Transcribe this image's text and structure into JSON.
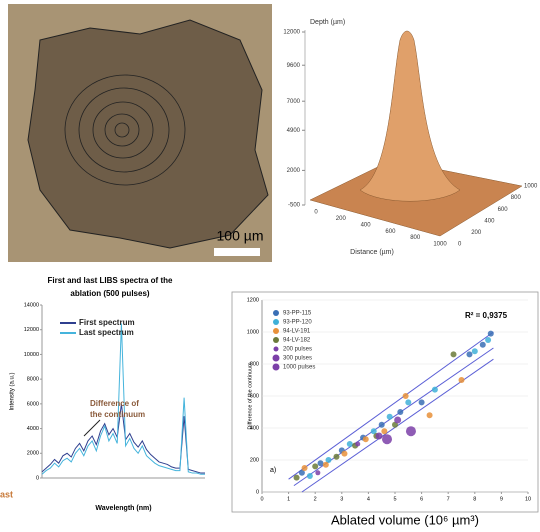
{
  "image_panel": {
    "scale_label": "100 µm"
  },
  "cropped_label": "ast",
  "chart_data": [
    {
      "type": "surface",
      "z_label": "Depth (µm)",
      "x_label": "Distance (µm)",
      "color": "#d9925a",
      "zlim": [
        -500,
        12000
      ],
      "zticks": [
        12000,
        9600,
        7000,
        4900,
        2000,
        -500
      ],
      "xlim": [
        0,
        1000
      ],
      "xticks": [
        0,
        200,
        400,
        600,
        800,
        1000
      ],
      "ylim": [
        0,
        1000
      ],
      "yticks": [
        0,
        200,
        400,
        600,
        800,
        1000
      ]
    },
    {
      "type": "line",
      "title": [
        "First and last LIBS spectra of the",
        "ablation (500 pulses)"
      ],
      "x_label": "Wavelength (nm)",
      "y_label": "Intensity (a.u.)",
      "annotation": [
        "Difference of",
        "the continuum"
      ],
      "x": [
        200,
        217,
        234,
        251,
        268,
        285,
        302,
        319,
        336,
        353,
        370,
        387,
        404,
        421,
        438,
        455,
        472,
        489,
        506,
        523,
        540,
        557,
        574,
        591,
        608,
        625,
        642,
        659,
        676,
        693,
        710,
        727,
        744,
        761,
        778,
        795,
        812,
        829,
        846,
        863
      ],
      "xlim": [
        200,
        863
      ],
      "ylim": [
        0,
        14000
      ],
      "yticks": [
        0,
        2000,
        4000,
        6000,
        8000,
        10000,
        12000,
        14000
      ],
      "series": [
        {
          "name": "First spectrum",
          "color": "#2f3f8f",
          "values": [
            500,
            800,
            1100,
            1500,
            1200,
            1800,
            2000,
            1700,
            2400,
            2800,
            2200,
            3000,
            3400,
            2700,
            3800,
            4400,
            3500,
            4000,
            3300,
            6000,
            3100,
            3600,
            2900,
            2500,
            3000,
            2300,
            1900,
            1600,
            1300,
            1200,
            1100,
            900,
            800,
            800,
            5000,
            700,
            600,
            500,
            400,
            400
          ]
        },
        {
          "name": "Last spectrum",
          "color": "#45b4dc",
          "values": [
            300,
            600,
            800,
            1200,
            900,
            1400,
            1600,
            1300,
            2000,
            2400,
            1800,
            2600,
            3000,
            2200,
            3400,
            4200,
            3000,
            3600,
            2800,
            12500,
            2600,
            3200,
            2400,
            2000,
            2600,
            1800,
            1500,
            1200,
            1000,
            900,
            800,
            700,
            600,
            600,
            6500,
            500,
            400,
            400,
            300,
            300
          ]
        }
      ]
    },
    {
      "type": "scatter",
      "y_label": "Difference of the continuum",
      "x_label": "Ablated volume (10⁶ µm³)",
      "annotation": "R² = 0,9375",
      "panel_label": "a)",
      "xlim": [
        0,
        10
      ],
      "xticks": [
        0,
        1,
        2,
        3,
        4,
        5,
        6,
        7,
        8,
        9,
        10
      ],
      "ylim": [
        0,
        1200
      ],
      "yticks": [
        0,
        200,
        400,
        600,
        800,
        1000,
        1200
      ],
      "series": [
        {
          "name": "93-PP-115",
          "color": "#3a6fb5",
          "x": [
            1.5,
            2.2,
            3.0,
            3.8,
            4.5,
            5.2,
            6.0,
            7.8,
            8.3,
            8.6
          ],
          "values": [
            120,
            180,
            260,
            340,
            420,
            500,
            560,
            860,
            920,
            990
          ]
        },
        {
          "name": "93-PP-120",
          "color": "#3fb0d8",
          "x": [
            1.8,
            2.5,
            3.3,
            4.2,
            4.8,
            5.5,
            6.5,
            8.0,
            8.5
          ],
          "values": [
            100,
            200,
            300,
            380,
            470,
            560,
            640,
            880,
            950
          ]
        },
        {
          "name": "94-LV-191",
          "color": "#e8913a",
          "x": [
            1.6,
            2.4,
            3.1,
            3.9,
            4.6,
            5.4,
            6.3,
            7.5
          ],
          "values": [
            150,
            170,
            240,
            330,
            380,
            600,
            480,
            700
          ]
        },
        {
          "name": "94-LV-182",
          "color": "#6b7a3a",
          "x": [
            1.3,
            2.0,
            2.8,
            3.5,
            4.3,
            5.0,
            7.2
          ],
          "values": [
            90,
            160,
            220,
            290,
            350,
            420,
            860
          ]
        },
        {
          "name": "200 pulses",
          "color": "#7b3fa8",
          "x": [
            2.1,
            3.6
          ],
          "values": [
            120,
            300
          ],
          "size": 2.5
        },
        {
          "name": "300 pulses",
          "color": "#7b3fa8",
          "x": [
            4.4,
            5.1
          ],
          "values": [
            350,
            450
          ],
          "size": 3.5
        },
        {
          "name": "1000 pulses",
          "color": "#7b3fa8",
          "x": [
            4.7,
            5.6
          ],
          "values": [
            330,
            380
          ],
          "size": 5
        }
      ],
      "fits": [
        {
          "color": "#5b5fd6",
          "x": [
            1.0,
            8.7
          ],
          "values": [
            80,
            1000
          ]
        },
        {
          "color": "#5b5fd6",
          "x": [
            1.2,
            8.7
          ],
          "values": [
            40,
            900
          ]
        },
        {
          "color": "#5b5fd6",
          "x": [
            1.5,
            8.7
          ],
          "values": [
            0,
            830
          ]
        }
      ]
    }
  ]
}
